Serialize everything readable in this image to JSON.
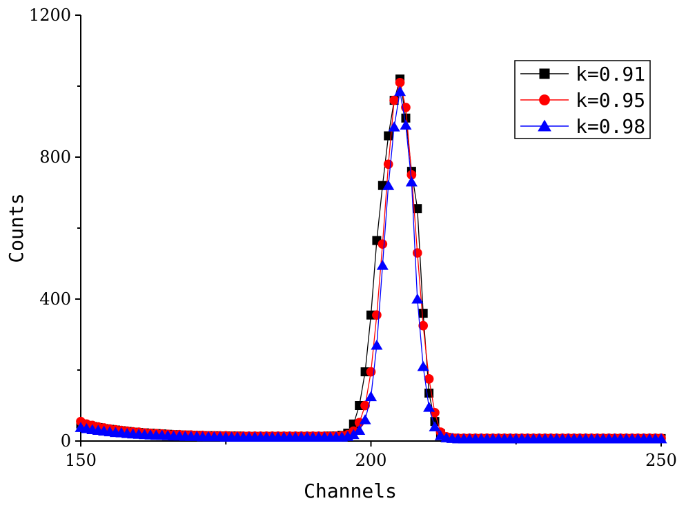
{
  "chart_data": {
    "type": "line",
    "title": "",
    "xlabel": "Channels",
    "ylabel": "Counts",
    "xlim": [
      150,
      250
    ],
    "ylim": [
      0,
      1200
    ],
    "xticks": [
      150,
      200,
      250
    ],
    "xtick_labels": [
      "150",
      "200",
      "250"
    ],
    "yticks": [
      0,
      400,
      800,
      1200
    ],
    "ytick_labels": [
      "0",
      "400",
      "800",
      "1200"
    ],
    "legend_position": "top-right",
    "series": [
      {
        "name": "k=0.91",
        "color": "#000000",
        "marker": "square",
        "x": [
          150,
          151,
          152,
          153,
          154,
          155,
          156,
          157,
          158,
          159,
          160,
          161,
          162,
          163,
          164,
          165,
          166,
          167,
          168,
          169,
          170,
          171,
          172,
          173,
          174,
          175,
          176,
          177,
          178,
          179,
          180,
          181,
          182,
          183,
          184,
          185,
          186,
          187,
          188,
          189,
          190,
          191,
          192,
          193,
          194,
          195,
          196,
          197,
          198,
          199,
          200,
          201,
          202,
          203,
          204,
          205,
          206,
          207,
          208,
          209,
          210,
          211,
          212,
          213,
          214,
          215,
          216,
          217,
          218,
          219,
          220,
          221,
          222,
          223,
          224,
          225,
          226,
          227,
          228,
          229,
          230,
          231,
          232,
          233,
          234,
          235,
          236,
          237,
          238,
          239,
          240,
          241,
          242,
          243,
          244,
          245,
          246,
          247,
          248,
          249,
          250
        ],
        "y": [
          48,
          44,
          41,
          38,
          35,
          33,
          31,
          29,
          27,
          25,
          24,
          23,
          22,
          21,
          20,
          19,
          18,
          17,
          17,
          16,
          16,
          15,
          15,
          15,
          14,
          14,
          14,
          14,
          13,
          13,
          13,
          13,
          13,
          13,
          13,
          13,
          13,
          13,
          13,
          13,
          13,
          13,
          13,
          14,
          14,
          16,
          22,
          48,
          100,
          195,
          355,
          565,
          720,
          860,
          960,
          1020,
          910,
          760,
          655,
          360,
          135,
          55,
          20,
          10,
          8,
          7,
          7,
          7,
          7,
          7,
          7,
          7,
          7,
          7,
          7,
          7,
          7,
          7,
          7,
          7,
          7,
          7,
          7,
          7,
          7,
          7,
          7,
          7,
          7,
          7,
          7,
          7,
          7,
          7,
          7,
          7,
          7,
          7,
          7,
          7,
          7
        ]
      },
      {
        "name": "k=0.95",
        "color": "#ff0000",
        "marker": "circle",
        "x": [
          150,
          151,
          152,
          153,
          154,
          155,
          156,
          157,
          158,
          159,
          160,
          161,
          162,
          163,
          164,
          165,
          166,
          167,
          168,
          169,
          170,
          171,
          172,
          173,
          174,
          175,
          176,
          177,
          178,
          179,
          180,
          181,
          182,
          183,
          184,
          185,
          186,
          187,
          188,
          189,
          190,
          191,
          192,
          193,
          194,
          195,
          196,
          197,
          198,
          199,
          200,
          201,
          202,
          203,
          204,
          205,
          206,
          207,
          208,
          209,
          210,
          211,
          212,
          213,
          214,
          215,
          216,
          217,
          218,
          219,
          220,
          221,
          222,
          223,
          224,
          225,
          226,
          227,
          228,
          229,
          230,
          231,
          232,
          233,
          234,
          235,
          236,
          237,
          238,
          239,
          240,
          241,
          242,
          243,
          244,
          245,
          246,
          247,
          248,
          249,
          250
        ],
        "y": [
          55,
          48,
          44,
          40,
          37,
          34,
          32,
          30,
          28,
          26,
          25,
          23,
          22,
          21,
          20,
          19,
          18,
          18,
          17,
          17,
          16,
          16,
          15,
          15,
          15,
          15,
          14,
          14,
          14,
          14,
          14,
          14,
          14,
          14,
          14,
          14,
          14,
          14,
          14,
          14,
          14,
          14,
          14,
          14,
          14,
          15,
          18,
          28,
          52,
          100,
          195,
          355,
          555,
          780,
          960,
          1010,
          940,
          750,
          530,
          325,
          175,
          80,
          25,
          12,
          9,
          8,
          8,
          8,
          8,
          8,
          8,
          8,
          8,
          8,
          8,
          8,
          8,
          8,
          8,
          8,
          8,
          8,
          8,
          8,
          8,
          8,
          8,
          8,
          8,
          8,
          8,
          8,
          8,
          8,
          8,
          8,
          8,
          8,
          8,
          8,
          8
        ]
      },
      {
        "name": "k=0.98",
        "color": "#0000ff",
        "marker": "triangle",
        "x": [
          150,
          151,
          152,
          153,
          154,
          155,
          156,
          157,
          158,
          159,
          160,
          161,
          162,
          163,
          164,
          165,
          166,
          167,
          168,
          169,
          170,
          171,
          172,
          173,
          174,
          175,
          176,
          177,
          178,
          179,
          180,
          181,
          182,
          183,
          184,
          185,
          186,
          187,
          188,
          189,
          190,
          191,
          192,
          193,
          194,
          195,
          196,
          197,
          198,
          199,
          200,
          201,
          202,
          203,
          204,
          205,
          206,
          207,
          208,
          209,
          210,
          211,
          212,
          213,
          214,
          215,
          216,
          217,
          218,
          219,
          220,
          221,
          222,
          223,
          224,
          225,
          226,
          227,
          228,
          229,
          230,
          231,
          232,
          233,
          234,
          235,
          236,
          237,
          238,
          239,
          240,
          241,
          242,
          243,
          244,
          245,
          246,
          247,
          248,
          249,
          250
        ],
        "y": [
          38,
          35,
          32,
          30,
          28,
          26,
          24,
          23,
          21,
          20,
          19,
          18,
          17,
          16,
          16,
          15,
          14,
          14,
          13,
          13,
          13,
          12,
          12,
          12,
          12,
          11,
          11,
          11,
          11,
          11,
          11,
          11,
          11,
          11,
          11,
          11,
          11,
          11,
          11,
          11,
          11,
          11,
          11,
          11,
          11,
          11,
          13,
          18,
          30,
          60,
          125,
          270,
          495,
          720,
          885,
          985,
          890,
          730,
          400,
          210,
          95,
          40,
          15,
          9,
          7,
          6,
          6,
          6,
          6,
          6,
          6,
          6,
          6,
          6,
          6,
          6,
          6,
          6,
          6,
          6,
          6,
          6,
          6,
          6,
          6,
          6,
          6,
          6,
          6,
          6,
          6,
          6,
          6,
          6,
          6,
          6,
          6,
          6,
          6,
          6,
          6
        ]
      }
    ]
  }
}
